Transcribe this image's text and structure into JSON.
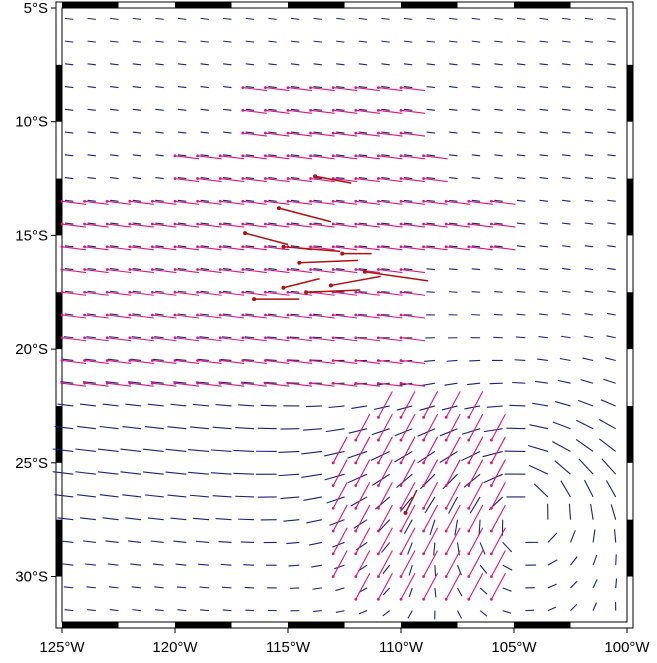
{
  "map": {
    "lon_range": [
      -125,
      -100
    ],
    "lat_range": [
      -32,
      -5
    ],
    "lat_labels": [
      "5°S",
      "10°S",
      "15°S",
      "20°S",
      "25°S",
      "30°S"
    ],
    "lat_values": [
      -5,
      -10,
      -15,
      -20,
      -25,
      -30
    ],
    "lon_labels": [
      "125°W",
      "120°W",
      "115°W",
      "110°W",
      "105°W",
      "100°W"
    ],
    "lon_values": [
      -125,
      -120,
      -115,
      -110,
      -105,
      -100
    ],
    "frame_style": "black-and-white alternating border",
    "layers": [
      {
        "name": "background vector field",
        "color": "#1a237e",
        "style": "short lines, regular grid"
      },
      {
        "name": "sampled vectors",
        "color": "#e0147a",
        "style": "lines with point markers",
        "region": "tradewind belt and southeast"
      },
      {
        "name": "observations",
        "color": "#b01010",
        "style": "arrows",
        "region": "near 12°S–18°S, 117°W–111°W"
      }
    ],
    "colors": {
      "background_vectors": "#1a237e",
      "sampled_vectors": "#e0147a",
      "observations": "#b01010",
      "frame": "#000000"
    }
  }
}
